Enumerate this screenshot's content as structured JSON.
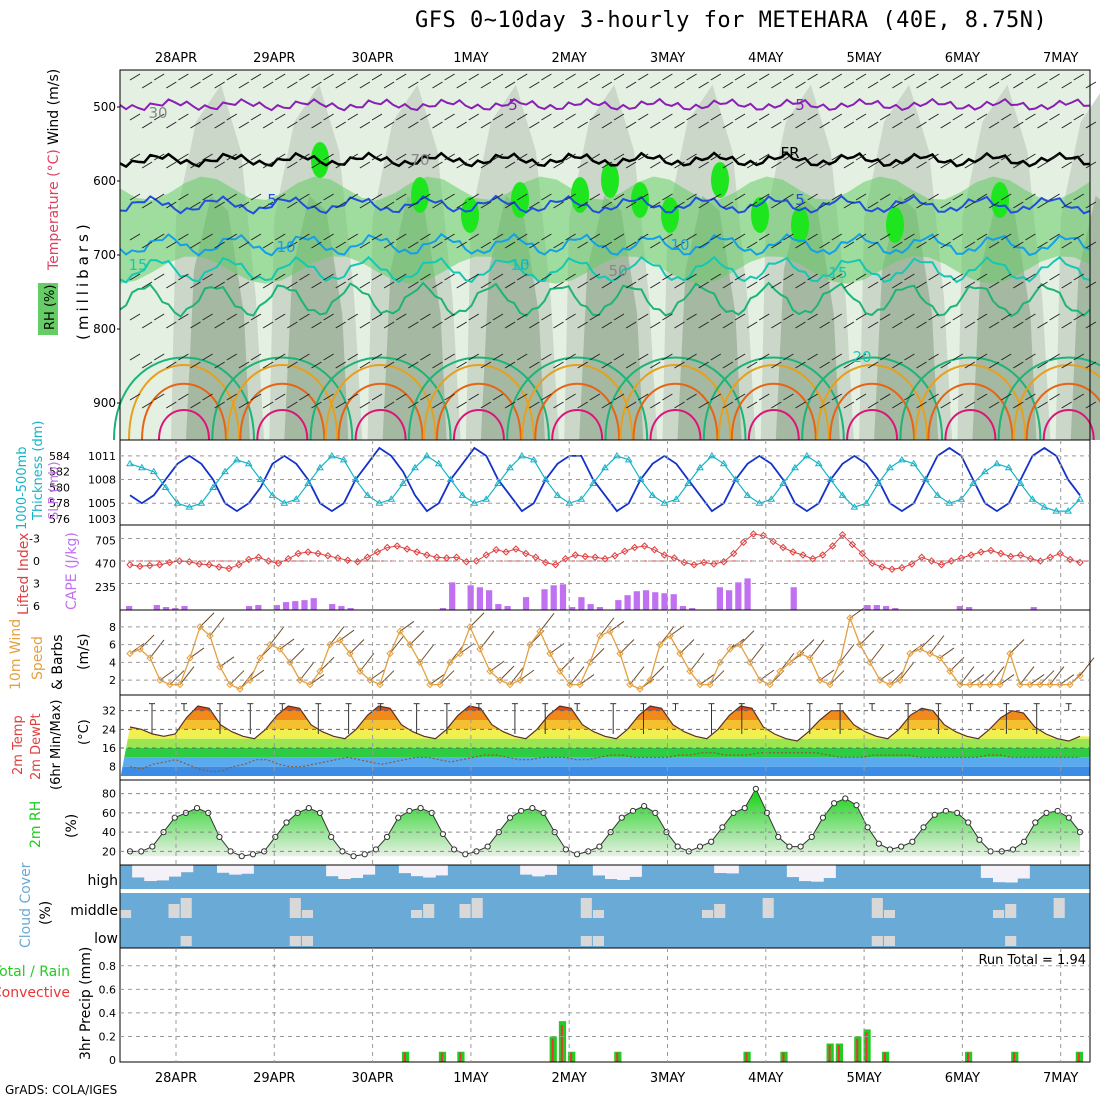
{
  "title": "GFS 0~10day 3-hourly for METEHARA (40E, 8.75N)",
  "credit": "GrADS: COLA/IGES",
  "date_labels": [
    "28APR",
    "29APR",
    "30APR",
    "1MAY",
    "2MAY",
    "3MAY",
    "4MAY",
    "5MAY",
    "6MAY",
    "7MAY"
  ],
  "colors": {
    "rh_light": "#e4f1e2",
    "rh_mid": "#c8d4c6",
    "rh_dark": "#9bb198",
    "rh_green": "#66cc66",
    "rh_bright": "#1ee61e",
    "temp_purple": "#8a1fb4",
    "temp_blue": "#1e50dc",
    "temp_lightblue": "#14a0e6",
    "temp_teal": "#14c8b4",
    "temp_green": "#1eb478",
    "temp_orange": "#e6a01e",
    "temp_darkorange": "#e66414",
    "temp_magenta": "#dc1478",
    "slp": "#1432c8",
    "thickness": "#14b4c8",
    "cape": "#c070f0",
    "lifted_index": "#e04040",
    "wind10m": "#e6a040",
    "precip_total": "#22cc22",
    "precip_conv": "#ee3333",
    "cloud": "#6aaad6",
    "rh2m": "#22cc22"
  },
  "panels": {
    "upper": {
      "ylabel": "(millibars)",
      "legend": [
        {
          "text": "Wind (m/s)",
          "color": "#000000"
        },
        {
          "text": "Temperature (°C)",
          "color": "#e04060"
        },
        {
          "text": "RH (%)",
          "color": "#22aa22"
        }
      ],
      "pressure_ticks": [
        "500",
        "600",
        "700",
        "800",
        "900"
      ],
      "contour_labels": [
        "5",
        "5",
        "FR",
        "5",
        "5",
        "10",
        "10",
        "10",
        "15",
        "15",
        "15",
        "20",
        "30",
        "70",
        "50"
      ]
    },
    "slp": {
      "left_labels": [
        "1000-500mb",
        "Thickness (dm)"
      ],
      "right_labels": [
        "SLP (mb)"
      ],
      "thickness_ticks": [
        "584",
        "582",
        "580",
        "578",
        "576"
      ],
      "slp_ticks": [
        "1011",
        "1008",
        "1005",
        "1003"
      ]
    },
    "cape": {
      "left_labels": [
        "Lifted Index",
        "CAPE (J/kg)"
      ],
      "li_ticks": [
        "-3",
        "0",
        "3",
        "6"
      ],
      "cape_ticks": [
        "705",
        "470",
        "235"
      ]
    },
    "wind": {
      "left_labels": [
        "10m Wind",
        "Speed",
        "& Barbs",
        "(m/s)"
      ],
      "ticks": [
        "8",
        "6",
        "4",
        "2"
      ]
    },
    "temp": {
      "left_labels": [
        "2m Temp",
        "2m DewPt",
        "(6hr Min/Max)",
        "(°C)"
      ],
      "ticks": [
        "32",
        "24",
        "16",
        "8"
      ]
    },
    "rh": {
      "left_labels": [
        "2m RH",
        "(%)"
      ],
      "ticks": [
        "80",
        "60",
        "40",
        "20"
      ]
    },
    "cloud": {
      "left_labels": [
        "Cloud Cover",
        "(%)"
      ],
      "levels": [
        "high",
        "middle",
        "low"
      ]
    },
    "precip": {
      "left_labels": [
        "3hr Precip (mm)",
        "Total / Rain",
        "Convective"
      ],
      "ticks": [
        "0.8",
        "0.6",
        "0.4",
        "0.2",
        "0"
      ],
      "run_total": "Run Total = 1.94"
    }
  },
  "chart_data": {
    "type": "meteogram",
    "x_dates": [
      "28APR",
      "29APR",
      "30APR",
      "1MAY",
      "2MAY",
      "3MAY",
      "4MAY",
      "5MAY",
      "6MAY",
      "7MAY"
    ],
    "slp_mb": [
      1006,
      1005,
      1006,
      1008,
      1010,
      1011,
      1010,
      1008,
      1005,
      1004,
      1005,
      1007,
      1010,
      1011,
      1010,
      1008,
      1005,
      1004,
      1005,
      1008,
      1010,
      1012,
      1011,
      1009,
      1006,
      1004,
      1005,
      1008,
      1010,
      1012,
      1011,
      1008,
      1006,
      1004,
      1005,
      1008,
      1010,
      1011,
      1011,
      1008,
      1006,
      1004,
      1005,
      1008,
      1010,
      1011,
      1010,
      1008,
      1006,
      1004,
      1005,
      1008,
      1010,
      1011,
      1010,
      1008,
      1005,
      1004,
      1005,
      1008,
      1010,
      1011,
      1010,
      1008,
      1005,
      1004,
      1005,
      1008,
      1011,
      1012,
      1011,
      1008,
      1005,
      1004,
      1005,
      1008,
      1011,
      1012,
      1011,
      1008,
      1006
    ],
    "thickness_dm": [
      583,
      582.5,
      582,
      580,
      578,
      577.5,
      578,
      580,
      582,
      583.5,
      583,
      581,
      579,
      578,
      578.5,
      580.5,
      582.5,
      584,
      583.5,
      581,
      579,
      578,
      578.5,
      580.5,
      582.5,
      584,
      583,
      581,
      579,
      578,
      578.5,
      580.5,
      582.5,
      584,
      583.5,
      581,
      579,
      578,
      578.5,
      580.5,
      582.5,
      584,
      583.5,
      581,
      579,
      578,
      578.5,
      580.5,
      582.5,
      584,
      583,
      581,
      579,
      578,
      578.5,
      580.5,
      582.5,
      584,
      583,
      581,
      579,
      577.5,
      578,
      580.5,
      582.5,
      583.5,
      583,
      581,
      579,
      578,
      578.5,
      580.5,
      582,
      583,
      582.5,
      580.5,
      578.5,
      577.5,
      577,
      577,
      578.5
    ],
    "cape_jkg": [
      40,
      0,
      0,
      50,
      30,
      20,
      40,
      0,
      0,
      0,
      0,
      0,
      0,
      40,
      50,
      0,
      50,
      80,
      90,
      100,
      120,
      0,
      60,
      40,
      20,
      0,
      0,
      0,
      0,
      0,
      0,
      0,
      0,
      0,
      20,
      280,
      0,
      250,
      230,
      200,
      60,
      40,
      0,
      130,
      0,
      210,
      250,
      260,
      30,
      130,
      60,
      30,
      0,
      100,
      150,
      190,
      200,
      180,
      170,
      160,
      40,
      20,
      0,
      0,
      230,
      200,
      280,
      320,
      0,
      0,
      0,
      0,
      230,
      0,
      0,
      0,
      0,
      0,
      0,
      0,
      50,
      50,
      40,
      20,
      0,
      0,
      0,
      0,
      0,
      0,
      40,
      30,
      0,
      0,
      0,
      0,
      0,
      0,
      30,
      0,
      0,
      0,
      0,
      0
    ],
    "lifted_index": [
      0.5,
      0.7,
      0.6,
      0.5,
      0.2,
      0.0,
      0.1,
      0.4,
      0.5,
      0.8,
      1.0,
      0.5,
      -0.2,
      -0.5,
      0.0,
      0.3,
      -0.3,
      -1.0,
      -1.2,
      -1.0,
      -0.7,
      -0.4,
      -0.1,
      0.1,
      -0.5,
      -1.2,
      -1.8,
      -2.0,
      -1.6,
      -1.2,
      -0.8,
      -0.5,
      -0.4,
      -0.5,
      0.1,
      0.0,
      -0.8,
      -1.5,
      -1.2,
      -1.6,
      -1.0,
      -0.5,
      0.2,
      0.5,
      -0.3,
      -0.8,
      -0.6,
      -0.5,
      -0.3,
      -0.7,
      -1.3,
      -1.8,
      -2.0,
      -1.5,
      -0.8,
      -0.4,
      0.2,
      0.5,
      0.2,
      0.4,
      0.1,
      -1.0,
      -2.5,
      -3.6,
      -3.4,
      -2.6,
      -1.8,
      -1.2,
      -0.8,
      -0.3,
      -0.8,
      -2.0,
      -3.5,
      -2.2,
      -1.0,
      0.3,
      0.8,
      1.1,
      0.9,
      0.4,
      -0.5,
      0.0,
      0.5,
      0.0,
      -0.4,
      -0.8,
      -1.2,
      -1.4,
      -1.0,
      -0.6,
      -0.8,
      -0.3,
      0.0,
      -0.5,
      -1.0,
      -0.2,
      0.2
    ],
    "wind10m_ms": [
      5,
      5.5,
      4.5,
      2,
      1.5,
      1.5,
      4.5,
      8,
      7,
      3.5,
      1.5,
      1,
      2,
      4.5,
      6,
      5.5,
      4,
      2,
      1.5,
      3,
      6,
      6.5,
      5,
      3,
      2,
      1.5,
      5,
      7.5,
      6,
      4,
      1.5,
      1.5,
      4,
      5,
      8,
      5.5,
      3,
      2,
      1.5,
      2,
      6,
      7.5,
      5,
      3,
      1.5,
      1.5,
      4,
      7,
      7.5,
      5,
      1.5,
      1,
      2,
      6,
      7,
      5,
      3,
      1.5,
      1.5,
      4,
      5.5,
      6,
      4,
      2,
      1.5,
      3,
      4,
      5,
      4.5,
      2,
      1.5,
      4,
      9,
      6,
      4,
      2,
      1.5,
      2,
      5,
      5.5,
      5,
      4.5,
      3,
      1.5,
      1.5,
      1.5,
      1.5,
      1.5,
      5,
      1.5,
      1.5,
      1.5,
      1.5,
      1.5,
      1.5,
      2.5
    ],
    "temp2m_c": [
      25,
      24,
      22,
      21,
      22,
      29,
      34,
      33,
      26,
      23,
      21,
      20,
      24,
      30,
      34,
      33,
      26,
      23,
      21,
      20,
      24,
      30,
      34,
      33,
      26,
      23,
      21,
      20,
      24,
      30,
      34,
      33,
      26,
      23,
      21,
      20,
      24,
      30,
      34,
      33,
      26,
      23,
      21,
      20,
      24,
      30,
      34,
      33,
      26,
      23,
      21,
      20,
      24,
      30,
      34,
      33,
      25,
      22,
      20,
      19,
      23,
      28,
      32,
      32,
      26,
      23,
      21,
      20,
      24,
      30,
      33,
      32,
      26,
      23,
      21,
      20,
      24,
      29,
      32,
      31,
      25,
      22,
      20,
      19,
      21
    ],
    "dewpt2m_c": [
      8,
      7,
      9,
      10,
      11,
      9,
      7,
      6,
      6,
      8,
      9,
      11,
      11,
      9,
      8,
      8,
      9,
      10,
      11,
      12,
      11,
      10,
      9,
      10,
      11,
      12,
      12,
      11,
      10,
      11,
      12,
      13,
      13,
      12,
      11,
      11,
      12,
      12,
      12,
      11,
      11,
      12,
      13,
      13,
      12,
      12,
      12,
      12,
      13,
      13,
      14,
      14,
      13,
      13,
      13,
      14,
      14,
      14,
      14,
      14,
      14,
      13,
      12,
      12,
      12,
      13,
      13,
      13,
      13,
      12,
      12,
      12,
      12,
      12,
      12,
      13,
      13,
      12,
      12,
      12,
      12,
      12,
      12,
      12
    ],
    "rh2m_pct": [
      20,
      20,
      25,
      40,
      55,
      60,
      65,
      60,
      35,
      20,
      15,
      17,
      20,
      35,
      50,
      60,
      65,
      60,
      35,
      20,
      15,
      17,
      22,
      35,
      55,
      62,
      65,
      60,
      38,
      22,
      17,
      20,
      25,
      40,
      55,
      62,
      65,
      60,
      40,
      22,
      17,
      20,
      25,
      40,
      55,
      62,
      67,
      60,
      40,
      25,
      20,
      25,
      30,
      45,
      60,
      65,
      85,
      60,
      35,
      25,
      25,
      35,
      55,
      70,
      75,
      68,
      45,
      28,
      22,
      25,
      30,
      45,
      58,
      62,
      60,
      50,
      32,
      20,
      20,
      22,
      30,
      50,
      60,
      62,
      55,
      40
    ],
    "precip_total_mm": [
      0,
      0,
      0,
      0,
      0,
      0,
      0,
      0,
      0,
      0,
      0,
      0,
      0,
      0,
      0,
      0,
      0,
      0,
      0,
      0,
      0,
      0,
      0,
      0,
      0,
      0,
      0,
      0,
      0,
      0,
      0.07,
      0,
      0,
      0,
      0.07,
      0,
      0.07,
      0,
      0,
      0,
      0,
      0,
      0,
      0,
      0,
      0,
      0.2,
      0.33,
      0.07,
      0,
      0,
      0,
      0,
      0.07,
      0,
      0,
      0,
      0,
      0,
      0,
      0,
      0,
      0,
      0,
      0,
      0,
      0,
      0.07,
      0,
      0,
      0,
      0.07,
      0,
      0,
      0,
      0,
      0.14,
      0.14,
      0,
      0.2,
      0.26,
      0,
      0.07,
      0,
      0,
      0,
      0,
      0,
      0,
      0,
      0,
      0.07,
      0,
      0,
      0,
      0,
      0.07,
      0,
      0,
      0,
      0,
      0,
      0,
      0.07
    ]
  }
}
